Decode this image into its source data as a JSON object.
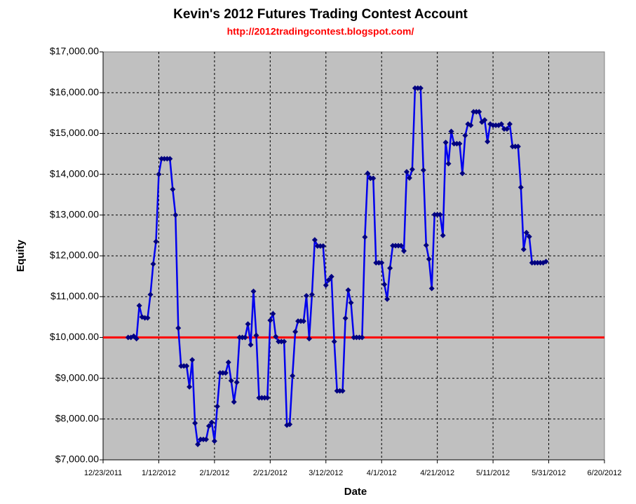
{
  "chart_data": {
    "type": "line",
    "title": "Kevin's 2012 Futures Trading Contest Account",
    "subtitle": "http://2012tradingcontest.blogspot.com/",
    "x_label": "Date",
    "y_label": "Equity",
    "x": [
      "1/1/2012",
      "1/2/2012",
      "1/3/2012",
      "1/4/2012",
      "1/5/2012",
      "1/6/2012",
      "1/7/2012",
      "1/8/2012",
      "1/9/2012",
      "1/10/2012",
      "1/11/2012",
      "1/12/2012",
      "1/13/2012",
      "1/14/2012",
      "1/15/2012",
      "1/16/2012",
      "1/17/2012",
      "1/18/2012",
      "1/19/2012",
      "1/20/2012",
      "1/21/2012",
      "1/22/2012",
      "1/23/2012",
      "1/24/2012",
      "1/25/2012",
      "1/26/2012",
      "1/27/2012",
      "1/28/2012",
      "1/29/2012",
      "1/30/2012",
      "1/31/2012",
      "2/1/2012",
      "2/2/2012",
      "2/3/2012",
      "2/4/2012",
      "2/5/2012",
      "2/6/2012",
      "2/7/2012",
      "2/8/2012",
      "2/9/2012",
      "2/10/2012",
      "2/11/2012",
      "2/12/2012",
      "2/13/2012",
      "2/14/2012",
      "2/15/2012",
      "2/16/2012",
      "2/17/2012",
      "2/18/2012",
      "2/19/2012",
      "2/20/2012",
      "2/21/2012",
      "2/22/2012",
      "2/23/2012",
      "2/24/2012",
      "2/25/2012",
      "2/26/2012",
      "2/27/2012",
      "2/28/2012",
      "2/29/2012",
      "3/1/2012",
      "3/2/2012",
      "3/3/2012",
      "3/4/2012",
      "3/5/2012",
      "3/6/2012",
      "3/7/2012",
      "3/8/2012",
      "3/9/2012",
      "3/10/2012",
      "3/11/2012",
      "3/12/2012",
      "3/13/2012",
      "3/14/2012",
      "3/15/2012",
      "3/16/2012",
      "3/17/2012",
      "3/18/2012",
      "3/19/2012",
      "3/20/2012",
      "3/21/2012",
      "3/22/2012",
      "3/23/2012",
      "3/24/2012",
      "3/25/2012",
      "3/26/2012",
      "3/27/2012",
      "3/28/2012",
      "3/29/2012",
      "3/30/2012",
      "3/31/2012",
      "4/1/2012",
      "4/2/2012",
      "4/3/2012",
      "4/4/2012",
      "4/5/2012",
      "4/6/2012",
      "4/7/2012",
      "4/8/2012",
      "4/9/2012",
      "4/10/2012",
      "4/11/2012",
      "4/12/2012",
      "4/13/2012",
      "4/14/2012",
      "4/15/2012",
      "4/16/2012",
      "4/17/2012",
      "4/18/2012",
      "4/19/2012",
      "4/20/2012",
      "4/21/2012",
      "4/22/2012",
      "4/23/2012",
      "4/24/2012",
      "4/25/2012",
      "4/26/2012",
      "4/27/2012",
      "4/28/2012",
      "4/29/2012",
      "4/30/2012",
      "5/1/2012",
      "5/2/2012",
      "5/3/2012",
      "5/4/2012",
      "5/5/2012",
      "5/6/2012",
      "5/7/2012",
      "5/8/2012",
      "5/9/2012",
      "5/10/2012",
      "5/11/2012",
      "5/12/2012",
      "5/13/2012",
      "5/14/2012",
      "5/15/2012",
      "5/16/2012",
      "5/17/2012",
      "5/18/2012",
      "5/19/2012",
      "5/20/2012",
      "5/21/2012",
      "5/22/2012",
      "5/23/2012",
      "5/24/2012",
      "5/25/2012",
      "5/26/2012",
      "5/27/2012",
      "5/28/2012",
      "5/29/2012",
      "5/30/2012"
    ],
    "series": [
      {
        "name": "Equity",
        "color": "#0000ee",
        "marker_color": "#000080",
        "values": [
          10000,
          10000,
          10030,
          9970,
          10780,
          10500,
          10480,
          10480,
          11050,
          11800,
          12350,
          14000,
          14380,
          14380,
          14380,
          14380,
          13630,
          13000,
          10230,
          9300,
          9300,
          9300,
          8790,
          9450,
          7900,
          7380,
          7500,
          7500,
          7500,
          7830,
          7920,
          7460,
          8310,
          9130,
          9130,
          9130,
          9390,
          8940,
          8420,
          8900,
          10000,
          10000,
          10000,
          10330,
          9820,
          11130,
          10050,
          8520,
          8520,
          8520,
          8520,
          10420,
          10580,
          10020,
          9900,
          9900,
          9900,
          7850,
          7870,
          9060,
          10140,
          10400,
          10400,
          10400,
          11020,
          9970,
          11050,
          12390,
          12240,
          12240,
          12240,
          11280,
          11410,
          11490,
          9900,
          8690,
          8690,
          8690,
          10470,
          11160,
          10850,
          10000,
          10000,
          10000,
          10000,
          12460,
          14020,
          13900,
          13900,
          11830,
          11830,
          11830,
          11300,
          10940,
          11700,
          12250,
          12250,
          12250,
          12250,
          12120,
          14060,
          13910,
          14120,
          16110,
          16110,
          16110,
          14100,
          12260,
          11920,
          11200,
          13010,
          13010,
          13010,
          12500,
          14780,
          14260,
          15050,
          14750,
          14750,
          14750,
          14020,
          14950,
          15230,
          15200,
          15530,
          15530,
          15530,
          15280,
          15330,
          14800,
          15230,
          15200,
          15200,
          15200,
          15230,
          15110,
          15110,
          15230,
          14680,
          14680,
          14680,
          13680,
          12160,
          12570,
          12470,
          11830,
          11830,
          11830,
          11830,
          11830,
          11860
        ]
      }
    ],
    "reference_line": {
      "value": 10000,
      "color": "#ff0000"
    },
    "xlim": [
      "12/23/2011",
      "6/20/2012"
    ],
    "xticks": [
      "12/23/2011",
      "1/12/2012",
      "2/1/2012",
      "2/21/2012",
      "3/12/2012",
      "4/1/2012",
      "4/21/2012",
      "5/11/2012",
      "5/31/2012",
      "6/20/2012"
    ],
    "ylim": [
      7000,
      17000
    ],
    "yticks": [
      {
        "value": 7000,
        "label": "$7,000.00"
      },
      {
        "value": 8000,
        "label": "$8,000.00"
      },
      {
        "value": 9000,
        "label": "$9,000.00"
      },
      {
        "value": 10000,
        "label": "$10,000.00"
      },
      {
        "value": 11000,
        "label": "$11,000.00"
      },
      {
        "value": 12000,
        "label": "$12,000.00"
      },
      {
        "value": 13000,
        "label": "$13,000.00"
      },
      {
        "value": 14000,
        "label": "$14,000.00"
      },
      {
        "value": 15000,
        "label": "$15,000.00"
      },
      {
        "value": 16000,
        "label": "$16,000.00"
      },
      {
        "value": 17000,
        "label": "$17,000.00"
      }
    ],
    "grid": true,
    "plot_background": "#c0c0c0"
  }
}
